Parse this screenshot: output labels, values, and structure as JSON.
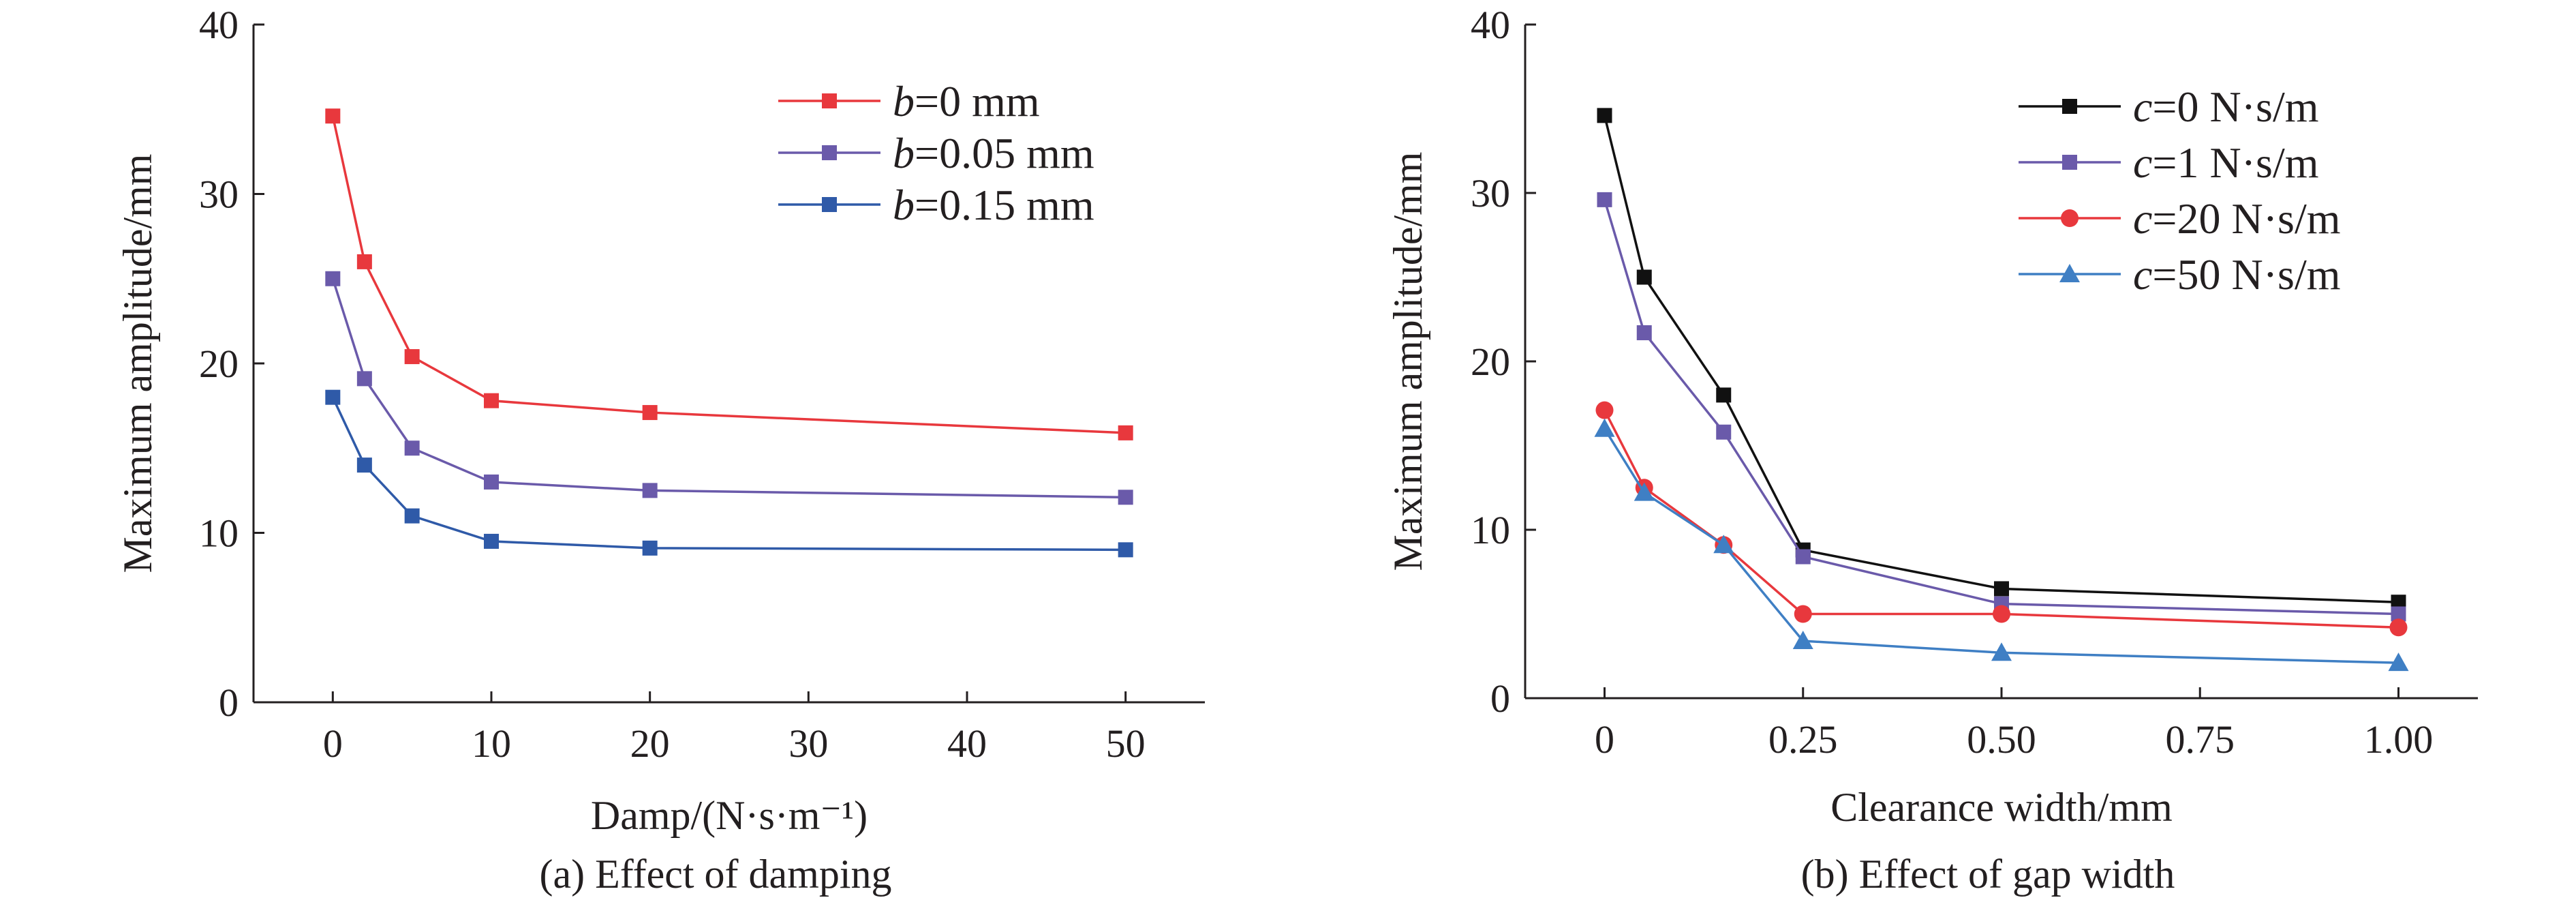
{
  "chart_data": [
    {
      "type": "line",
      "caption": "(a) Effect of damping",
      "xlabel": "Damp/(N·s·m⁻¹)",
      "ylabel": "Maximum amplitude/mm",
      "xlim": [
        -5,
        55
      ],
      "ylim": [
        0,
        40
      ],
      "xticks": [
        0,
        10,
        20,
        30,
        40,
        50
      ],
      "yticks": [
        0,
        10,
        20,
        30,
        40
      ],
      "xtick_labels": [
        "0",
        "10",
        "20",
        "30",
        "40",
        "50"
      ],
      "ytick_labels": [
        "0",
        "10",
        "20",
        "30",
        "40"
      ],
      "x": [
        0,
        2,
        5,
        10,
        20,
        50
      ],
      "legend_position": "top-right",
      "series": [
        {
          "name": "b=0 mm",
          "italic_var": "b",
          "name_rest": "=0 mm",
          "color": "#e8383d",
          "marker": "square",
          "values": [
            34.6,
            26.0,
            20.4,
            17.8,
            17.1,
            15.9
          ]
        },
        {
          "name": "b=0.05 mm",
          "italic_var": "b",
          "name_rest": "=0.05 mm",
          "color": "#6a5aaa",
          "marker": "square",
          "values": [
            25.0,
            19.1,
            15.0,
            13.0,
            12.5,
            12.1
          ]
        },
        {
          "name": "b=0.15 mm",
          "italic_var": "b",
          "name_rest": "=0.15 mm",
          "color": "#2f5aa8",
          "marker": "square",
          "values": [
            18.0,
            14.0,
            11.0,
            9.5,
            9.1,
            9.0
          ]
        }
      ]
    },
    {
      "type": "line",
      "caption": "(b) Effect of gap width",
      "xlabel": "Clearance width/mm",
      "ylabel": "Maximum amplitude/mm",
      "xlim": [
        -0.1,
        1.1
      ],
      "ylim": [
        0,
        40
      ],
      "xticks": [
        0,
        0.25,
        0.5,
        0.75,
        1.0
      ],
      "yticks": [
        0,
        10,
        20,
        30,
        40
      ],
      "xtick_labels": [
        "0",
        "0.25",
        "0.50",
        "0.75",
        "1.00"
      ],
      "ytick_labels": [
        "0",
        "10",
        "20",
        "30",
        "40"
      ],
      "x": [
        0,
        0.05,
        0.15,
        0.25,
        0.5,
        1.0
      ],
      "legend_position": "top-right",
      "series": [
        {
          "name": "c=0 N·s/m",
          "italic_var": "c",
          "name_rest": "=0 N·s/m",
          "color": "#111111",
          "marker": "square",
          "values": [
            34.6,
            25.0,
            18.0,
            8.8,
            6.5,
            5.7
          ]
        },
        {
          "name": "c=1 N·s/m",
          "italic_var": "c",
          "name_rest": "=1 N·s/m",
          "color": "#6a5aaa",
          "marker": "square",
          "values": [
            29.6,
            21.7,
            15.8,
            8.4,
            5.6,
            5.0
          ]
        },
        {
          "name": "c=20 N·s/m",
          "italic_var": "c",
          "name_rest": "=20 N·s/m",
          "color": "#e8383d",
          "marker": "circle",
          "values": [
            17.1,
            12.5,
            9.1,
            5.0,
            5.0,
            4.2
          ]
        },
        {
          "name": "c=50 N·s/m",
          "italic_var": "c",
          "name_rest": "=50 N·s/m",
          "color": "#3f7fc4",
          "marker": "triangle",
          "values": [
            16.0,
            12.2,
            9.1,
            3.4,
            2.7,
            2.1
          ]
        }
      ]
    }
  ]
}
